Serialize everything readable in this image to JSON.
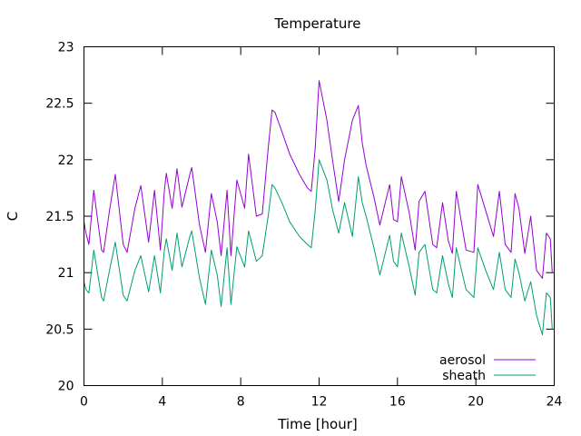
{
  "chart_data": {
    "type": "line",
    "title": "Temperature",
    "xlabel": "Time [hour]",
    "ylabel": "C",
    "xlim": [
      0,
      24
    ],
    "ylim": [
      20,
      23
    ],
    "xticks": [
      0,
      4,
      8,
      12,
      16,
      20,
      24
    ],
    "xtick_labels": [
      "0",
      "4",
      "8",
      "12",
      "16",
      "20",
      "24"
    ],
    "yticks": [
      20,
      20.5,
      21,
      21.5,
      22,
      22.5,
      23
    ],
    "ytick_labels": [
      "20",
      "20.5",
      "21",
      "21.5",
      "22",
      "22.5",
      "23"
    ],
    "grid": false,
    "legend_position": "bottom-right",
    "series": [
      {
        "name": "aerosol",
        "color": "#9400d3",
        "x": [
          0.0,
          0.1,
          0.25,
          0.5,
          0.9,
          1.0,
          1.3,
          1.6,
          2.0,
          2.2,
          2.6,
          2.9,
          3.3,
          3.6,
          3.9,
          4.1,
          4.2,
          4.5,
          4.75,
          5.0,
          5.4,
          5.5,
          5.9,
          6.2,
          6.5,
          6.8,
          7.0,
          7.3,
          7.5,
          7.8,
          8.2,
          8.4,
          8.8,
          9.1,
          9.4,
          9.6,
          9.75,
          10.1,
          10.5,
          11.0,
          11.4,
          11.6,
          11.8,
          12.0,
          12.4,
          12.7,
          13.0,
          13.3,
          13.7,
          14.0,
          14.2,
          14.4,
          14.8,
          15.1,
          15.6,
          15.8,
          16.0,
          16.2,
          16.6,
          16.9,
          17.1,
          17.4,
          17.8,
          18.0,
          18.3,
          18.6,
          18.8,
          19.0,
          19.5,
          19.9,
          20.1,
          20.5,
          20.9,
          21.2,
          21.5,
          21.8,
          22.0,
          22.2,
          22.5,
          22.8,
          23.1,
          23.4,
          23.6,
          23.8,
          23.9
        ],
        "y": [
          21.45,
          21.35,
          21.25,
          21.73,
          21.2,
          21.18,
          21.55,
          21.87,
          21.25,
          21.18,
          21.57,
          21.77,
          21.27,
          21.73,
          21.2,
          21.72,
          21.88,
          21.57,
          21.92,
          21.58,
          21.87,
          21.93,
          21.42,
          21.18,
          21.7,
          21.45,
          21.15,
          21.73,
          21.15,
          21.82,
          21.57,
          22.05,
          21.5,
          21.52,
          22.1,
          22.44,
          22.42,
          22.25,
          22.05,
          21.87,
          21.75,
          21.72,
          22.1,
          22.7,
          22.35,
          21.98,
          21.63,
          22.0,
          22.35,
          22.48,
          22.15,
          21.95,
          21.67,
          21.42,
          21.78,
          21.47,
          21.45,
          21.85,
          21.53,
          21.2,
          21.63,
          21.72,
          21.25,
          21.22,
          21.62,
          21.28,
          21.17,
          21.72,
          21.2,
          21.18,
          21.78,
          21.55,
          21.32,
          21.72,
          21.25,
          21.18,
          21.7,
          21.57,
          21.17,
          21.5,
          21.02,
          20.95,
          21.35,
          21.3,
          21.0
        ]
      },
      {
        "name": "sheath",
        "color": "#009e73",
        "x": [
          0.0,
          0.1,
          0.25,
          0.5,
          0.9,
          1.0,
          1.3,
          1.6,
          2.0,
          2.2,
          2.6,
          2.9,
          3.3,
          3.6,
          3.9,
          4.1,
          4.2,
          4.5,
          4.75,
          5.0,
          5.4,
          5.5,
          5.9,
          6.2,
          6.5,
          6.8,
          7.0,
          7.3,
          7.5,
          7.8,
          8.2,
          8.4,
          8.8,
          9.1,
          9.4,
          9.6,
          9.75,
          10.1,
          10.5,
          11.0,
          11.4,
          11.6,
          11.8,
          12.0,
          12.4,
          12.7,
          13.0,
          13.3,
          13.7,
          14.0,
          14.2,
          14.4,
          14.8,
          15.1,
          15.6,
          15.8,
          16.0,
          16.2,
          16.6,
          16.9,
          17.1,
          17.4,
          17.8,
          18.0,
          18.3,
          18.6,
          18.8,
          19.0,
          19.5,
          19.9,
          20.1,
          20.5,
          20.9,
          21.2,
          21.5,
          21.8,
          22.0,
          22.2,
          22.5,
          22.8,
          23.1,
          23.4,
          23.6,
          23.8,
          23.9
        ],
        "y": [
          20.92,
          20.85,
          20.82,
          21.2,
          20.78,
          20.75,
          21.02,
          21.27,
          20.8,
          20.75,
          21.02,
          21.15,
          20.83,
          21.15,
          20.82,
          21.2,
          21.3,
          21.02,
          21.35,
          21.05,
          21.32,
          21.37,
          20.95,
          20.72,
          21.2,
          20.98,
          20.7,
          21.22,
          20.72,
          21.23,
          21.05,
          21.37,
          21.1,
          21.15,
          21.5,
          21.78,
          21.75,
          21.62,
          21.45,
          21.32,
          21.25,
          21.22,
          21.55,
          22.0,
          21.82,
          21.55,
          21.35,
          21.62,
          21.32,
          21.85,
          21.62,
          21.5,
          21.22,
          20.98,
          21.33,
          21.1,
          21.05,
          21.35,
          21.05,
          20.8,
          21.18,
          21.25,
          20.85,
          20.82,
          21.15,
          20.9,
          20.78,
          21.22,
          20.85,
          20.78,
          21.22,
          21.02,
          20.85,
          21.18,
          20.85,
          20.78,
          21.12,
          21.0,
          20.75,
          20.92,
          20.62,
          20.45,
          20.82,
          20.78,
          20.5
        ]
      }
    ]
  }
}
